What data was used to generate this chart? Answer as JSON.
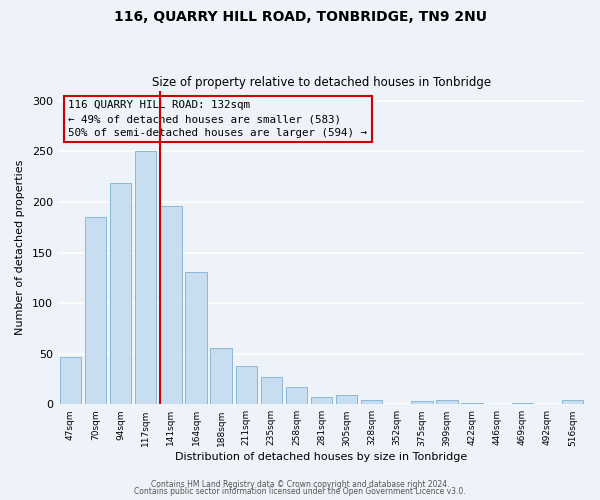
{
  "title": "116, QUARRY HILL ROAD, TONBRIDGE, TN9 2NU",
  "subtitle": "Size of property relative to detached houses in Tonbridge",
  "xlabel": "Distribution of detached houses by size in Tonbridge",
  "ylabel": "Number of detached properties",
  "bar_labels": [
    "47sqm",
    "70sqm",
    "94sqm",
    "117sqm",
    "141sqm",
    "164sqm",
    "188sqm",
    "211sqm",
    "235sqm",
    "258sqm",
    "281sqm",
    "305sqm",
    "328sqm",
    "352sqm",
    "375sqm",
    "399sqm",
    "422sqm",
    "446sqm",
    "469sqm",
    "492sqm",
    "516sqm"
  ],
  "bar_values": [
    47,
    185,
    219,
    250,
    196,
    131,
    56,
    38,
    27,
    17,
    7,
    9,
    4,
    0,
    3,
    4,
    1,
    0,
    1,
    0,
    4
  ],
  "bar_color": "#c9ddf0",
  "bar_edge_color": "#8ab8d8",
  "red_line_index": 4,
  "red_line_color": "#cc0000",
  "annotation_text": "116 QUARRY HILL ROAD: 132sqm\n← 49% of detached houses are smaller (583)\n50% of semi-detached houses are larger (594) →",
  "annotation_box_edge_color": "#cc0000",
  "ylim": [
    0,
    310
  ],
  "yticks": [
    0,
    50,
    100,
    150,
    200,
    250,
    300
  ],
  "background_color": "#eef2f9",
  "grid_color": "#ffffff",
  "footer_line1": "Contains HM Land Registry data © Crown copyright and database right 2024.",
  "footer_line2": "Contains public sector information licensed under the Open Government Licence v3.0."
}
